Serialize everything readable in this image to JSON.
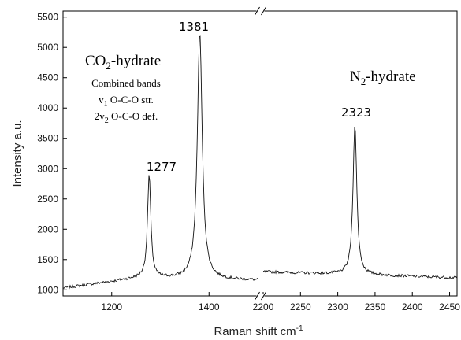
{
  "chart_data": {
    "type": "line",
    "xlabel": "Raman shift cm",
    "xlabel_sup": "-1",
    "ylabel": "Intensity a.u.",
    "broken_x_axis": true,
    "panels": [
      {
        "name": "CO2",
        "xlim": [
          1100,
          1500
        ],
        "xticks": [
          1200,
          1400
        ],
        "peaks": [
          {
            "x": 1277,
            "height": 2900,
            "width": 4
          },
          {
            "x": 1381,
            "height": 5250,
            "width": 6
          }
        ],
        "baseline": [
          [
            1100,
            1030
          ],
          [
            1260,
            1200
          ],
          [
            1500,
            1160
          ]
        ]
      },
      {
        "name": "N2",
        "xlim": [
          2200,
          2460
        ],
        "xticks": [
          2200,
          2250,
          2300,
          2350,
          2400,
          2450
        ],
        "peaks": [
          {
            "x": 2323,
            "height": 3750,
            "width": 3
          }
        ],
        "baseline": [
          [
            2200,
            1300
          ],
          [
            2460,
            1200
          ]
        ]
      }
    ],
    "ylim": [
      900,
      5600
    ],
    "yticks": [
      1000,
      1500,
      2000,
      2500,
      3000,
      3500,
      4000,
      4500,
      5000,
      5500
    ],
    "peak_labels": [
      {
        "text": "1277",
        "x": 1277
      },
      {
        "text": "1381",
        "x": 1381
      },
      {
        "text": "2323",
        "x": 2323
      }
    ],
    "annotations": {
      "co2_title_main": "CO",
      "co2_title_sub": "2",
      "co2_title_rest": "-hydrate",
      "band_line1": "Combined bands",
      "band_line2_a": "v",
      "band_line2_sub": "1",
      "band_line2_b": " O-C-O str.",
      "band_line3_a": "2v",
      "band_line3_sub": "2",
      "band_line3_b": " O-C-O def.",
      "n2_title_main": "N",
      "n2_title_sub": "2",
      "n2_title_rest": "-hydrate"
    }
  }
}
